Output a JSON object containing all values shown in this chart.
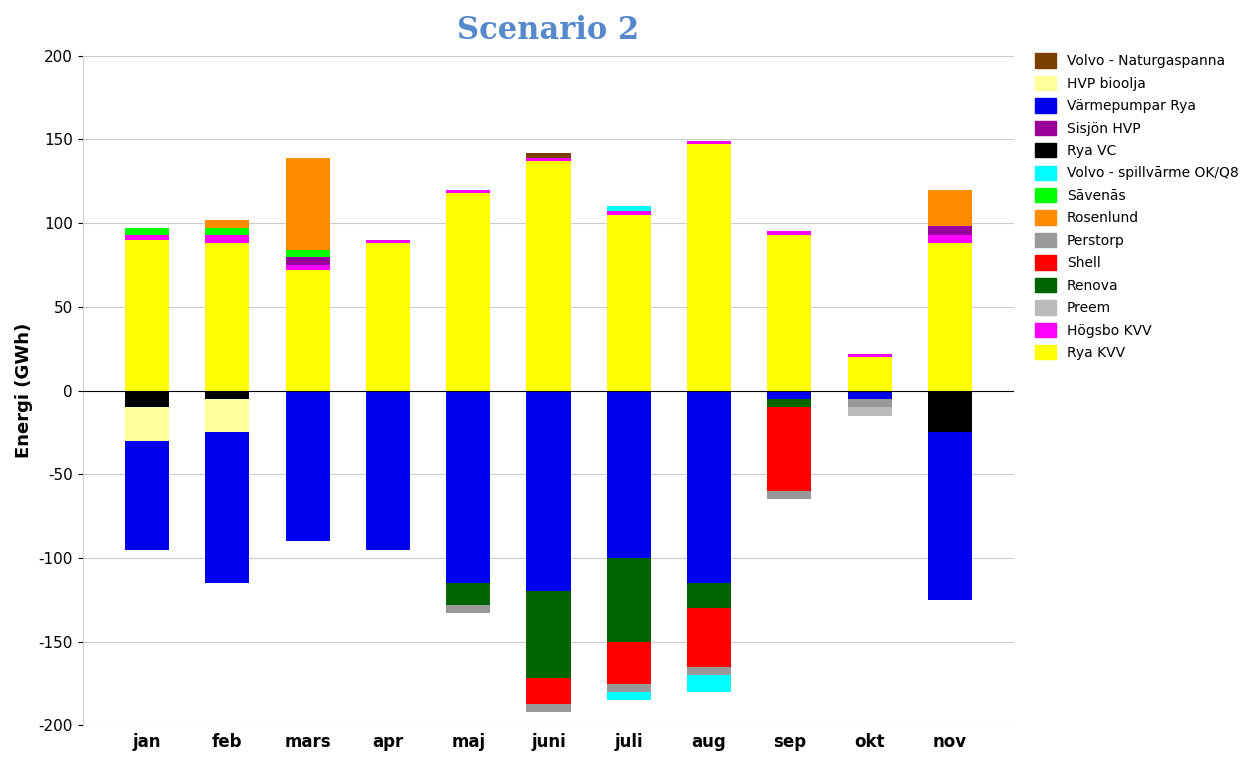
{
  "title": "Scenario 2",
  "ylabel": "Energi (GWh)",
  "months": [
    "jan",
    "feb",
    "mars",
    "apr",
    "maj",
    "juni",
    "juli",
    "aug",
    "sep",
    "okt",
    "nov"
  ],
  "series": {
    "Rya KVV": [
      90,
      88,
      72,
      88,
      118,
      137,
      105,
      147,
      93,
      20,
      88
    ],
    "Högsbo KVV": [
      3,
      5,
      3,
      2,
      2,
      2,
      2,
      2,
      2,
      2,
      5
    ],
    "Sisjön HVP": [
      0,
      0,
      5,
      0,
      0,
      0,
      0,
      0,
      0,
      0,
      5
    ],
    "Sāvenās": [
      4,
      4,
      4,
      0,
      0,
      0,
      0,
      0,
      0,
      0,
      0
    ],
    "Rosenlund": [
      0,
      5,
      55,
      0,
      0,
      0,
      0,
      0,
      0,
      0,
      22
    ],
    "Volvo - spillvārme OK/Q8": [
      0,
      0,
      0,
      0,
      0,
      0,
      3,
      0,
      0,
      0,
      0
    ],
    "Volvo - Naturgaspanna": [
      0,
      0,
      0,
      0,
      0,
      3,
      0,
      0,
      0,
      0,
      0
    ],
    "Rya VC": [
      -10,
      -5,
      0,
      0,
      0,
      0,
      0,
      0,
      0,
      0,
      -25
    ],
    "HVP bioolja": [
      -20,
      -20,
      0,
      0,
      0,
      0,
      0,
      0,
      0,
      0,
      0
    ],
    "Värmepumpar Rya": [
      -65,
      -90,
      -90,
      -95,
      -115,
      -120,
      -100,
      -115,
      -5,
      -5,
      -100
    ],
    "Renova": [
      0,
      0,
      0,
      0,
      -13,
      -52,
      -50,
      -15,
      -5,
      0,
      0
    ],
    "Shell": [
      0,
      0,
      0,
      0,
      0,
      -15,
      -25,
      -35,
      -50,
      0,
      0
    ],
    "Perstorp": [
      0,
      0,
      0,
      0,
      -5,
      -5,
      -5,
      -5,
      -5,
      -5,
      0
    ],
    "Preem": [
      0,
      0,
      0,
      0,
      0,
      0,
      0,
      0,
      0,
      -5,
      0
    ],
    "Volvo - spillvārme neg": [
      0,
      0,
      0,
      0,
      0,
      0,
      -5,
      -10,
      0,
      0,
      0
    ]
  },
  "series_neg_volvo": "Volvo - spillvārme OK/Q8",
  "colors": {
    "Rya KVV": "#FFFF00",
    "Högsbo KVV": "#FF00FF",
    "Sisjön HVP": "#990099",
    "Sāvenās": "#00FF00",
    "Rosenlund": "#FF8C00",
    "Volvo - spillvārme OK/Q8": "#00FFFF",
    "Volvo - Naturgaspanna": "#7B3F00",
    "Rya VC": "#000000",
    "HVP bioolja": "#FFFF99",
    "Värmepumpar Rya": "#0000EE",
    "Renova": "#006400",
    "Shell": "#FF0000",
    "Perstorp": "#999999",
    "Preem": "#BBBBBB",
    "Volvo - spillvārme neg": "#00FFFF"
  },
  "legend_order": [
    "Volvo - Naturgaspanna",
    "HVP bioolja",
    "Värmepumpar Rya",
    "Sisjön HVP",
    "Rya VC",
    "Volvo - spillvārme OK/Q8",
    "Sāvenās",
    "Rosenlund",
    "Perstorp",
    "Shell",
    "Renova",
    "Preem",
    "Högsbo KVV",
    "Rya KVV"
  ],
  "legend_colors": {
    "Volvo - Naturgaspanna": "#7B3F00",
    "HVP bioolja": "#FFFF99",
    "Värmepumpar Rya": "#0000EE",
    "Sisjön HVP": "#990099",
    "Rya VC": "#000000",
    "Volvo - spillvārme OK/Q8": "#00FFFF",
    "Sāvenās": "#00FF00",
    "Rosenlund": "#FF8C00",
    "Perstorp": "#999999",
    "Shell": "#FF0000",
    "Renova": "#006400",
    "Preem": "#BBBBBB",
    "Högsbo KVV": "#FF00FF",
    "Rya KVV": "#FFFF00"
  },
  "ylim": [
    -200,
    200
  ],
  "yticks": [
    -200,
    -150,
    -100,
    -50,
    0,
    50,
    100,
    150,
    200
  ],
  "title_color": "#5588CC",
  "title_fontsize": 22,
  "bar_width": 0.55
}
